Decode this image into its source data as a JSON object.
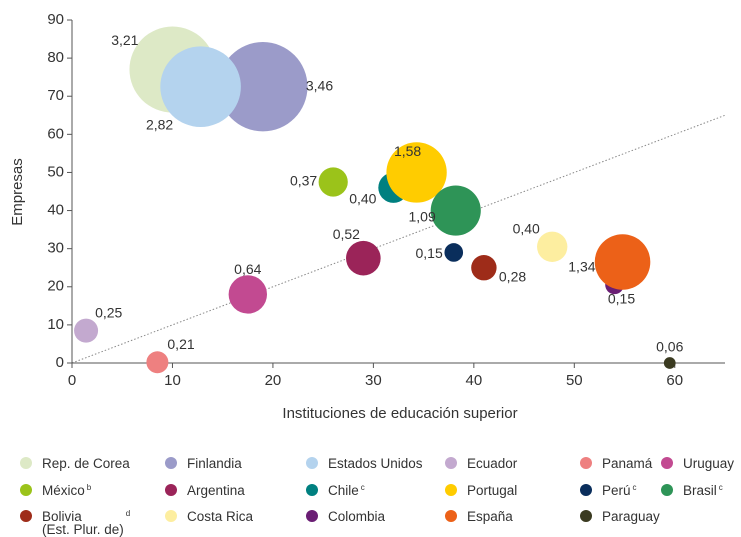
{
  "chart_data": {
    "type": "bubble",
    "x_label": "Instituciones de educación superior",
    "y_label": "Empresas",
    "xlim": [
      0,
      65
    ],
    "xticks": [
      0,
      10,
      20,
      30,
      40,
      50,
      60
    ],
    "ylim": [
      0,
      90
    ],
    "yticks": [
      0,
      10,
      20,
      30,
      40,
      50,
      60,
      70,
      80,
      90
    ],
    "diagonal": true,
    "series": [
      {
        "name": "Rep. de Corea",
        "color": "#dde9c6",
        "x": [
          10
        ],
        "values": [
          77
        ],
        "sizes": [
          3.21
        ],
        "value_labels": [
          "3,21"
        ]
      },
      {
        "name": "Finlandia",
        "color": "#9b9bc9",
        "x": [
          19
        ],
        "values": [
          72.5
        ],
        "sizes": [
          3.46
        ],
        "value_labels": [
          "3,46"
        ]
      },
      {
        "name": "Estados Unidos",
        "color": "#b4d3ee",
        "x": [
          12.8
        ],
        "values": [
          72.5
        ],
        "sizes": [
          2.82
        ],
        "value_labels": [
          "2,82"
        ]
      },
      {
        "name": "Ecuador",
        "color": "#c3a9cf",
        "x": [
          1.4
        ],
        "values": [
          8.5
        ],
        "sizes": [
          0.25
        ],
        "value_labels": [
          "0,25"
        ]
      },
      {
        "name": "Panamá",
        "color": "#ee8080",
        "x": [
          8.5
        ],
        "values": [
          0.2
        ],
        "sizes": [
          0.21
        ],
        "value_labels": [
          "0,21"
        ]
      },
      {
        "name": "Uruguay",
        "color": "#c24a91",
        "x": [
          17.5
        ],
        "values": [
          18
        ],
        "sizes": [
          0.64
        ],
        "value_labels": [
          "0,64"
        ]
      },
      {
        "name": "México",
        "note": "b",
        "color": "#9bc31a",
        "x": [
          26
        ],
        "values": [
          47.5
        ],
        "sizes": [
          0.37
        ],
        "value_labels": [
          "0,37"
        ]
      },
      {
        "name": "Argentina",
        "color": "#9b2459",
        "x": [
          29
        ],
        "values": [
          27.5
        ],
        "sizes": [
          0.52
        ],
        "value_labels": [
          "0,52"
        ]
      },
      {
        "name": "Chile",
        "note": "c",
        "color": "#008080",
        "x": [
          32
        ],
        "values": [
          46
        ],
        "sizes": [
          0.4
        ],
        "value_labels": [
          "0,40"
        ]
      },
      {
        "name": "Portugal",
        "color": "#ffcc00",
        "x": [
          34.3
        ],
        "values": [
          50
        ],
        "sizes": [
          1.58
        ],
        "value_labels": [
          "1,58"
        ]
      },
      {
        "name": "Perú",
        "note": "c",
        "color": "#0a2e5c",
        "x": [
          38
        ],
        "values": [
          29
        ],
        "sizes": [
          0.15
        ],
        "value_labels": [
          "0,15"
        ]
      },
      {
        "name": "Brasil",
        "note": "c",
        "color": "#2e9457",
        "x": [
          38.2
        ],
        "values": [
          40
        ],
        "sizes": [
          1.09
        ],
        "value_labels": [
          "1,09"
        ]
      },
      {
        "name": "Bolivia\n(Est. Plur. de)",
        "note": "d",
        "color": "#9e2c19",
        "x": [
          41
        ],
        "values": [
          25
        ],
        "sizes": [
          0.28
        ],
        "value_labels": [
          "0,28"
        ]
      },
      {
        "name": "Costa Rica",
        "color": "#fdeea0",
        "x": [
          47.8
        ],
        "values": [
          30.5
        ],
        "sizes": [
          0.4
        ],
        "value_labels": [
          "0,40"
        ]
      },
      {
        "name": "Colombia",
        "color": "#6a1e74",
        "x": [
          54
        ],
        "values": [
          20.5
        ],
        "sizes": [
          0.15
        ],
        "value_labels": [
          "0,15"
        ]
      },
      {
        "name": "España",
        "color": "#ec6118",
        "x": [
          54.8
        ],
        "values": [
          26.5
        ],
        "sizes": [
          1.34
        ],
        "value_labels": [
          "1,34"
        ]
      },
      {
        "name": "Paraguay",
        "color": "#3a3a20",
        "x": [
          59.5
        ],
        "values": [
          0
        ],
        "sizes": [
          0.06
        ],
        "value_labels": [
          "0,06"
        ]
      }
    ]
  }
}
